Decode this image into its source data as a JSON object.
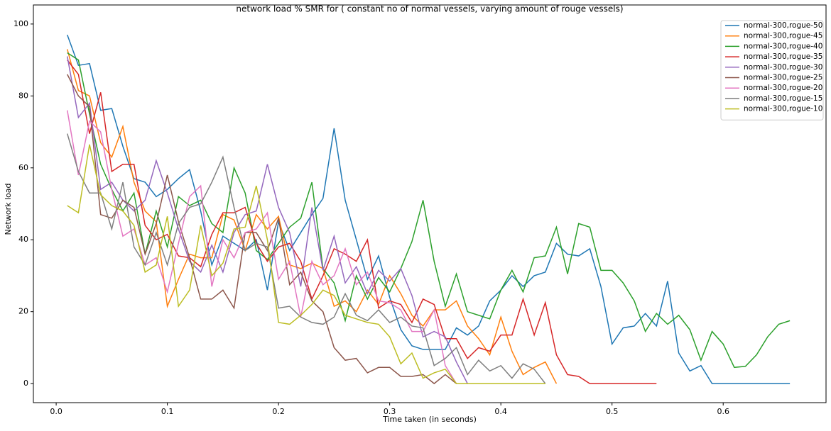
{
  "chart_data": {
    "type": "line",
    "title": "network load % SMR for ( constant no of normal vessels, varying amount of rouge vessels)",
    "xlabel": "Time taken (in seconds)",
    "ylabel": "Network load",
    "x": [
      0.01,
      0.02,
      0.03,
      0.04,
      0.05,
      0.06,
      0.07,
      0.08,
      0.09,
      0.1,
      0.11,
      0.12,
      0.13,
      0.14,
      0.15,
      0.16,
      0.17,
      0.18,
      0.19,
      0.2,
      0.21,
      0.22,
      0.23,
      0.24,
      0.25,
      0.26,
      0.27,
      0.28,
      0.29,
      0.3,
      0.31,
      0.32,
      0.33,
      0.34,
      0.35,
      0.36,
      0.37,
      0.38,
      0.39,
      0.4,
      0.41,
      0.42,
      0.43,
      0.44,
      0.45,
      0.46,
      0.47,
      0.48,
      0.49,
      0.5,
      0.51,
      0.52,
      0.53,
      0.54,
      0.55,
      0.56,
      0.57,
      0.58,
      0.59,
      0.6,
      0.61,
      0.62,
      0.63,
      0.64,
      0.65,
      0.66
    ],
    "series": [
      {
        "name": "normal-300,rogue-50",
        "color": "#1f77b4",
        "values": [
          97,
          88.5,
          89,
          76,
          76.5,
          66,
          57,
          56,
          52,
          54,
          57,
          59.5,
          48,
          33,
          41,
          39,
          37,
          40,
          26,
          45,
          37,
          42,
          47,
          51.5,
          71,
          51,
          40,
          29,
          35.5,
          24,
          15,
          10.5,
          9.5,
          9.5,
          9.5,
          15.5,
          13.5,
          16,
          23,
          26,
          30,
          27,
          30,
          31,
          39,
          36,
          35.5,
          37.5,
          27,
          11,
          15.5,
          16,
          19.5,
          16,
          28.5,
          8.5,
          3.5,
          5,
          0,
          0,
          0,
          0,
          0,
          0,
          0,
          0
        ]
      },
      {
        "name": "normal-300,rogue-45",
        "color": "#ff7f0e",
        "values": [
          93,
          81.5,
          80,
          67,
          63,
          71.5,
          56,
          48,
          45,
          21.5,
          29,
          36,
          35,
          35,
          47,
          45.5,
          37,
          47,
          43,
          46.5,
          33,
          32,
          33.5,
          32,
          21.5,
          23,
          20,
          26,
          22,
          30,
          25,
          19,
          16,
          20.5,
          20.5,
          23,
          16,
          12.5,
          8,
          18.5,
          9,
          2.5,
          4.5,
          6,
          0,
          null,
          null,
          null,
          null,
          null,
          null,
          null,
          null,
          null,
          null,
          null,
          null,
          null,
          null,
          null,
          null,
          null,
          null,
          null,
          null,
          null
        ]
      },
      {
        "name": "normal-300,rogue-40",
        "color": "#2ca02c",
        "values": [
          92,
          90,
          75,
          61,
          54,
          48,
          53,
          36,
          48,
          38,
          52,
          49.5,
          51,
          44.5,
          42,
          60,
          53,
          37,
          34.5,
          39,
          43.5,
          46,
          56,
          32,
          28,
          17.5,
          30,
          23.5,
          29.5,
          25.5,
          32,
          39.5,
          51,
          34,
          21.5,
          30.5,
          20,
          19,
          18,
          26,
          31.5,
          25.5,
          35,
          35.5,
          43.5,
          30.5,
          44.5,
          43.5,
          31.5,
          31.5,
          28,
          23,
          14.5,
          19.5,
          16.5,
          19,
          15,
          6.5,
          14.5,
          11,
          4.5,
          4.8,
          8,
          13,
          16.5,
          17.5
        ]
      },
      {
        "name": "normal-300,rogue-35",
        "color": "#d62728",
        "values": [
          90,
          86,
          69.5,
          81,
          59,
          61,
          61,
          44,
          40,
          41.5,
          35.5,
          35,
          32.5,
          41.5,
          47.5,
          47.5,
          49,
          39,
          34,
          38,
          39,
          34,
          23.5,
          30,
          37.5,
          36,
          34,
          40,
          21,
          23,
          22,
          17,
          23.5,
          22,
          12.5,
          12.5,
          7,
          10,
          9,
          13.5,
          13.5,
          23.5,
          13.5,
          22.5,
          8,
          2.5,
          2,
          0,
          0,
          0,
          0,
          0,
          0,
          0,
          null,
          null,
          null,
          null,
          null,
          null,
          null,
          null,
          null,
          null,
          null,
          null
        ]
      },
      {
        "name": "normal-300,rogue-30",
        "color": "#9467bd",
        "values": [
          91,
          74,
          78,
          54,
          56,
          51,
          48,
          51,
          62,
          53,
          43,
          34,
          31,
          38.5,
          31,
          42,
          47,
          48,
          61,
          49,
          42,
          27,
          49,
          31.5,
          41,
          28,
          32.5,
          25,
          31.5,
          28.5,
          32,
          24.5,
          13,
          14.5,
          13,
          6,
          0,
          null,
          null,
          null,
          null,
          null,
          null,
          null,
          null,
          null,
          null,
          null,
          null,
          null,
          null,
          null,
          null,
          null,
          null,
          null,
          null,
          null,
          null,
          null,
          null,
          null,
          null,
          null,
          null,
          null
        ]
      },
      {
        "name": "normal-300,rogue-25",
        "color": "#8c564b",
        "values": [
          86,
          80,
          77,
          47,
          46,
          51,
          49,
          36,
          44.5,
          58,
          45,
          35,
          23.5,
          23.5,
          26,
          21,
          42,
          42,
          37,
          46,
          27.5,
          31,
          23,
          20,
          10,
          6.5,
          7,
          3,
          4.5,
          4.5,
          2,
          2,
          2.5,
          0,
          2.5,
          0,
          null,
          null,
          null,
          null,
          null,
          null,
          null,
          null,
          null,
          null,
          null,
          null,
          null,
          null,
          null,
          null,
          null,
          null,
          null,
          null,
          null,
          null,
          null,
          null,
          null,
          null,
          null,
          null,
          null,
          null
        ]
      },
      {
        "name": "normal-300,rogue-20",
        "color": "#e377c2",
        "values": [
          76,
          58,
          73,
          70,
          54,
          41,
          43,
          33,
          35,
          25.5,
          39,
          52,
          55,
          27,
          40,
          35,
          42,
          43,
          47.5,
          29,
          34,
          18.5,
          34,
          27.5,
          30,
          37.5,
          27.5,
          31,
          23,
          22.5,
          20.5,
          14.5,
          14.5,
          20.5,
          5,
          0,
          null,
          null,
          null,
          null,
          null,
          null,
          null,
          null,
          null,
          null,
          null,
          null,
          null,
          null,
          null,
          null,
          null,
          null,
          null,
          null,
          null,
          null,
          null,
          null,
          null,
          null,
          null,
          null,
          null,
          null
        ]
      },
      {
        "name": "normal-300,rogue-15",
        "color": "#7f7f7f",
        "values": [
          69.5,
          59,
          53,
          53,
          43,
          56,
          38,
          33,
          42,
          33,
          44.5,
          49,
          50,
          56,
          63,
          49,
          37,
          39,
          38,
          21,
          21.5,
          18.5,
          17,
          16.5,
          18.5,
          25,
          19,
          17.5,
          20.5,
          17,
          18.5,
          16,
          15.5,
          5,
          7,
          10,
          2.5,
          6.5,
          3.5,
          5,
          1.5,
          5.5,
          4,
          0,
          null,
          null,
          null,
          null,
          null,
          null,
          null,
          null,
          null,
          null,
          null,
          null,
          null,
          null,
          null,
          null,
          null,
          null,
          null,
          null,
          null,
          null
        ]
      },
      {
        "name": "normal-300,rogue-10",
        "color": "#bcbd22",
        "values": [
          49.5,
          47.5,
          66.5,
          52.5,
          49.5,
          48,
          44,
          31,
          33,
          46.5,
          21.5,
          26,
          44,
          30,
          33.5,
          43,
          43.5,
          55,
          40,
          17,
          16.5,
          19,
          22,
          26,
          24.5,
          19,
          18,
          17,
          16.5,
          13,
          5.5,
          8.5,
          1.5,
          3,
          4,
          0,
          0,
          0,
          0,
          0,
          0,
          0,
          0,
          0,
          null,
          null,
          null,
          null,
          null,
          null,
          null,
          null,
          null,
          null,
          null,
          null,
          null,
          null,
          null,
          null,
          null,
          null,
          null,
          null,
          null,
          null
        ]
      }
    ],
    "xlim": [
      -0.0205,
      0.6925
    ],
    "ylim": [
      -5.3,
      105.3
    ],
    "xticks": [
      {
        "value": 0,
        "label": "0.0"
      },
      0.1,
      0.2,
      0.3,
      0.4,
      0.5,
      0.6
    ],
    "yticks": [
      0,
      20,
      40,
      60,
      80,
      100
    ],
    "legend": "upper right"
  }
}
